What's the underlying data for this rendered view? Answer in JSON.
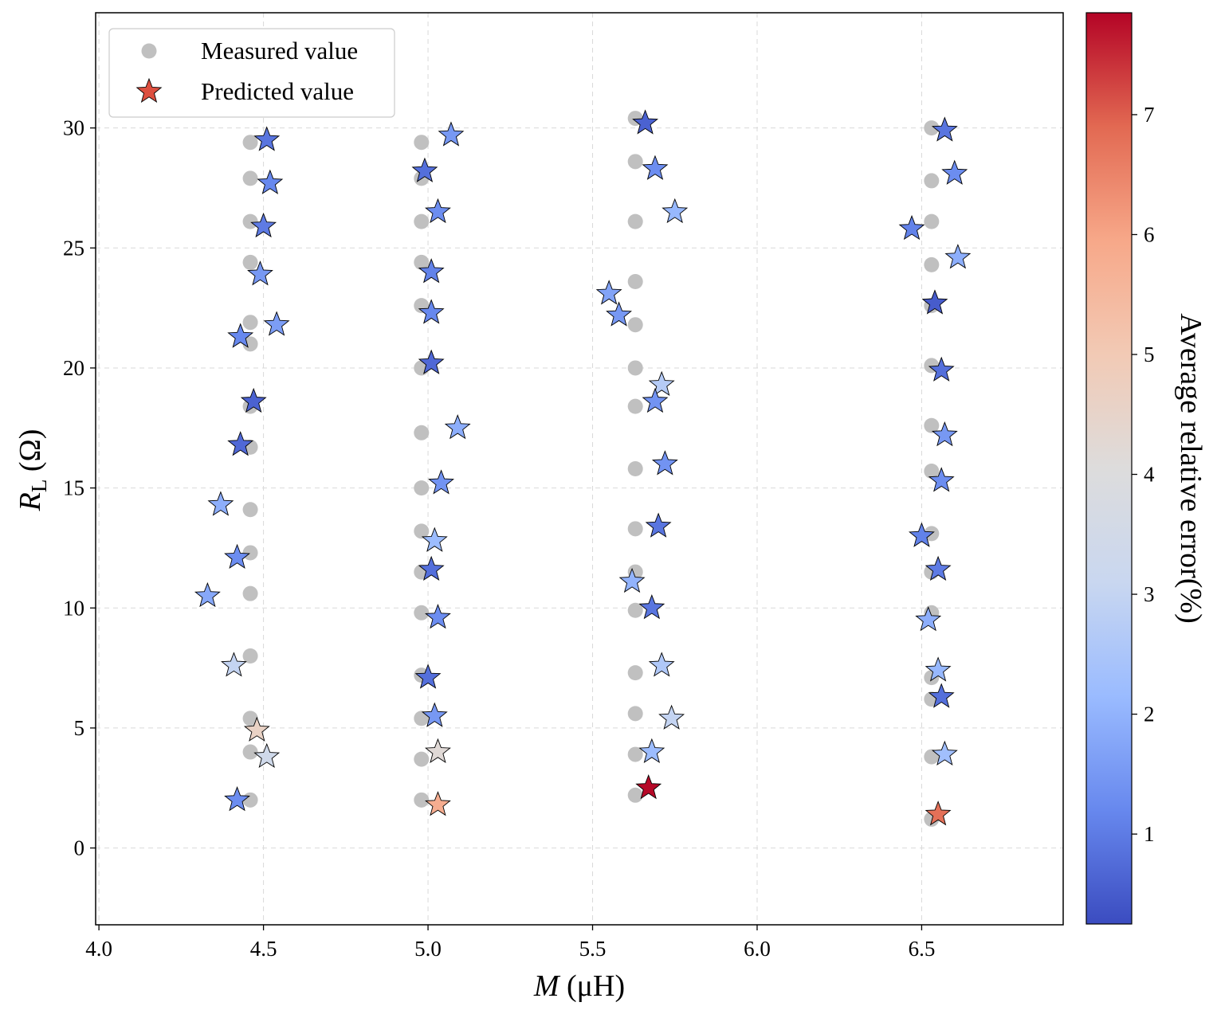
{
  "chart_data": {
    "type": "scatter",
    "xlabel_italic": "M",
    "xlabel_rest": " (μH)",
    "ylabel_italic": "R",
    "ylabel_sub": "L",
    "ylabel_rest": " (Ω)",
    "colorbar_label": "Average relative error(%)",
    "xlim": [
      3.99,
      6.93
    ],
    "ylim": [
      -3.2,
      34.8
    ],
    "xticks": [
      4.0,
      4.5,
      5.0,
      5.5,
      6.0,
      6.5
    ],
    "xtick_labels": [
      "4.0",
      "4.5",
      "5.0",
      "5.5",
      "6.0",
      "6.5"
    ],
    "yticks": [
      0,
      5,
      10,
      15,
      20,
      25,
      30
    ],
    "ytick_labels": [
      "0",
      "5",
      "10",
      "15",
      "20",
      "25",
      "30"
    ],
    "grid": true,
    "legend_position": "top-left",
    "colorbar_range": [
      0.25,
      7.85
    ],
    "colorbar_ticks": [
      1,
      2,
      3,
      4,
      5,
      6,
      7
    ],
    "colorbar_tick_labels": [
      "1",
      "2",
      "3",
      "4",
      "5",
      "6",
      "7"
    ],
    "colors": {
      "measured": "#c0c0c0",
      "predicted_legend": "#dd4f3f",
      "colormap": [
        "#3b4cc0",
        "#6788ee",
        "#9abbff",
        "#c9d7f0",
        "#dddcdc",
        "#f2cab5",
        "#f7a889",
        "#e26952",
        "#b40426"
      ]
    },
    "series": [
      {
        "name": "Measured value",
        "marker": "circle",
        "points": [
          [
            4.46,
            29.4
          ],
          [
            4.46,
            27.9
          ],
          [
            4.46,
            26.1
          ],
          [
            4.46,
            24.4
          ],
          [
            4.46,
            21.9
          ],
          [
            4.46,
            21.0
          ],
          [
            4.46,
            18.4
          ],
          [
            4.46,
            16.7
          ],
          [
            4.46,
            14.1
          ],
          [
            4.46,
            12.3
          ],
          [
            4.46,
            10.6
          ],
          [
            4.46,
            8.0
          ],
          [
            4.46,
            5.4
          ],
          [
            4.46,
            4.0
          ],
          [
            4.46,
            2.0
          ],
          [
            4.98,
            29.4
          ],
          [
            4.98,
            27.9
          ],
          [
            4.98,
            26.1
          ],
          [
            4.98,
            24.4
          ],
          [
            4.98,
            22.6
          ],
          [
            4.98,
            20.0
          ],
          [
            4.98,
            17.3
          ],
          [
            4.98,
            15.0
          ],
          [
            4.98,
            13.2
          ],
          [
            4.98,
            11.5
          ],
          [
            4.98,
            9.8
          ],
          [
            4.98,
            7.2
          ],
          [
            4.98,
            5.4
          ],
          [
            4.98,
            3.7
          ],
          [
            4.98,
            2.0
          ],
          [
            5.63,
            30.4
          ],
          [
            5.63,
            28.6
          ],
          [
            5.63,
            26.1
          ],
          [
            5.63,
            23.6
          ],
          [
            5.63,
            21.8
          ],
          [
            5.63,
            20.0
          ],
          [
            5.63,
            18.4
          ],
          [
            5.63,
            15.8
          ],
          [
            5.63,
            13.3
          ],
          [
            5.63,
            11.5
          ],
          [
            5.63,
            9.9
          ],
          [
            5.63,
            7.3
          ],
          [
            5.63,
            5.6
          ],
          [
            5.63,
            3.9
          ],
          [
            5.63,
            2.2
          ],
          [
            6.53,
            30.0
          ],
          [
            6.53,
            27.8
          ],
          [
            6.53,
            26.1
          ],
          [
            6.53,
            24.3
          ],
          [
            6.53,
            22.6
          ],
          [
            6.53,
            20.1
          ],
          [
            6.53,
            17.6
          ],
          [
            6.53,
            15.7
          ],
          [
            6.53,
            13.1
          ],
          [
            6.53,
            11.5
          ],
          [
            6.53,
            9.8
          ],
          [
            6.53,
            7.1
          ],
          [
            6.53,
            6.2
          ],
          [
            6.53,
            3.8
          ],
          [
            6.53,
            1.2
          ]
        ]
      },
      {
        "name": "Predicted value",
        "marker": "star",
        "points": [
          [
            4.51,
            29.5,
            0.9
          ],
          [
            4.52,
            27.7,
            1.2
          ],
          [
            4.5,
            25.9,
            1.0
          ],
          [
            4.49,
            23.9,
            1.5
          ],
          [
            4.54,
            21.8,
            1.6
          ],
          [
            4.43,
            21.3,
            1.2
          ],
          [
            4.47,
            18.6,
            0.6
          ],
          [
            4.43,
            16.8,
            0.7
          ],
          [
            4.37,
            14.3,
            1.9
          ],
          [
            4.42,
            12.1,
            1.3
          ],
          [
            4.33,
            10.5,
            1.8
          ],
          [
            4.41,
            7.6,
            3.0
          ],
          [
            4.48,
            4.9,
            4.6
          ],
          [
            4.51,
            3.8,
            3.4
          ],
          [
            4.42,
            2.0,
            1.3
          ],
          [
            5.07,
            29.7,
            1.5
          ],
          [
            4.99,
            28.2,
            0.8
          ],
          [
            5.03,
            26.5,
            1.3
          ],
          [
            5.01,
            24.0,
            1.1
          ],
          [
            5.01,
            22.3,
            1.2
          ],
          [
            5.01,
            20.2,
            0.7
          ],
          [
            5.09,
            17.5,
            1.9
          ],
          [
            5.04,
            15.2,
            1.4
          ],
          [
            5.02,
            12.8,
            2.2
          ],
          [
            5.01,
            11.6,
            0.8
          ],
          [
            5.03,
            9.6,
            1.3
          ],
          [
            5.0,
            7.1,
            0.8
          ],
          [
            5.02,
            5.5,
            1.5
          ],
          [
            5.03,
            4.0,
            4.2
          ],
          [
            5.03,
            1.8,
            5.8
          ],
          [
            5.66,
            30.2,
            0.6
          ],
          [
            5.69,
            28.3,
            1.3
          ],
          [
            5.75,
            26.5,
            2.1
          ],
          [
            5.55,
            23.1,
            1.7
          ],
          [
            5.58,
            22.2,
            1.5
          ],
          [
            5.71,
            19.3,
            2.7
          ],
          [
            5.69,
            18.6,
            1.4
          ],
          [
            5.72,
            16.0,
            1.4
          ],
          [
            5.7,
            13.4,
            0.9
          ],
          [
            5.62,
            11.1,
            2.0
          ],
          [
            5.68,
            10.0,
            0.9
          ],
          [
            5.71,
            7.6,
            2.6
          ],
          [
            5.74,
            5.4,
            3.0
          ],
          [
            5.68,
            4.0,
            2.2
          ],
          [
            5.67,
            2.5,
            7.8
          ],
          [
            6.57,
            29.9,
            0.9
          ],
          [
            6.6,
            28.1,
            1.3
          ],
          [
            6.47,
            25.8,
            1.1
          ],
          [
            6.61,
            24.6,
            1.9
          ],
          [
            6.54,
            22.7,
            0.5
          ],
          [
            6.56,
            19.9,
            0.8
          ],
          [
            6.57,
            17.2,
            1.5
          ],
          [
            6.56,
            15.3,
            1.3
          ],
          [
            6.5,
            13.0,
            1.1
          ],
          [
            6.55,
            11.6,
            1.0
          ],
          [
            6.52,
            9.5,
            1.9
          ],
          [
            6.55,
            7.4,
            2.1
          ],
          [
            6.56,
            6.3,
            0.8
          ],
          [
            6.57,
            3.9,
            2.3
          ],
          [
            6.55,
            1.4,
            6.8
          ]
        ]
      }
    ]
  }
}
